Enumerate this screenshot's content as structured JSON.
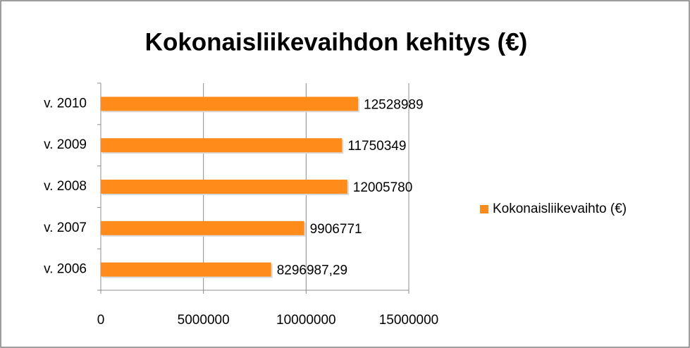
{
  "chart_data": {
    "type": "bar",
    "orientation": "horizontal",
    "title": "Kokonaisliikevaihdon kehitys (€)",
    "categories": [
      "v. 2006",
      "v. 2007",
      "v. 2008",
      "v. 2009",
      "v. 2010"
    ],
    "series": [
      {
        "name": "Kokonaisliikevaihto (€)",
        "color": "#ff8c1a",
        "values": [
          8296987.29,
          9906771,
          12005780,
          11750349,
          12528989
        ],
        "value_labels": [
          "8296987,29",
          "9906771",
          "12005780",
          "11750349",
          "12528989"
        ]
      }
    ],
    "xlim": [
      0,
      15000000
    ],
    "xticks": [
      0,
      5000000,
      10000000,
      15000000
    ],
    "grid": true,
    "legend": "right"
  }
}
